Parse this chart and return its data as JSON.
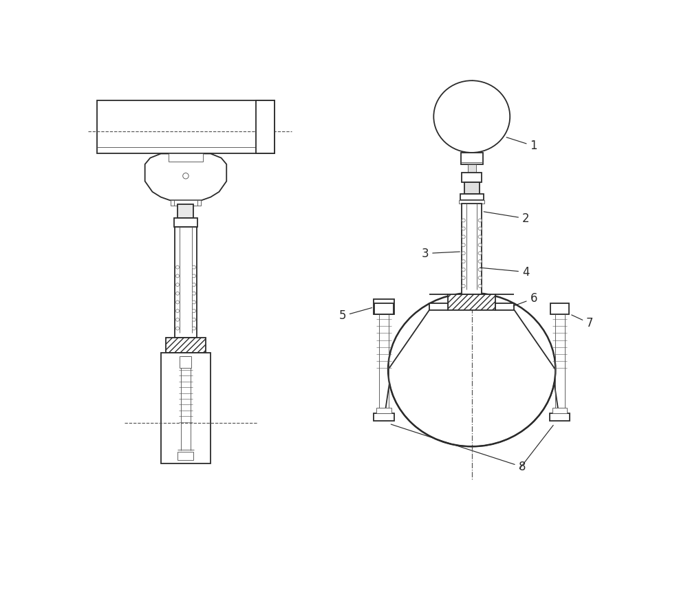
{
  "bg": "#ffffff",
  "lc": "#2a2a2a",
  "lc_gray": "#888888",
  "lc_mid": "#555555",
  "lw": 1.3,
  "lw_thin": 0.65,
  "lw_thick": 1.8
}
